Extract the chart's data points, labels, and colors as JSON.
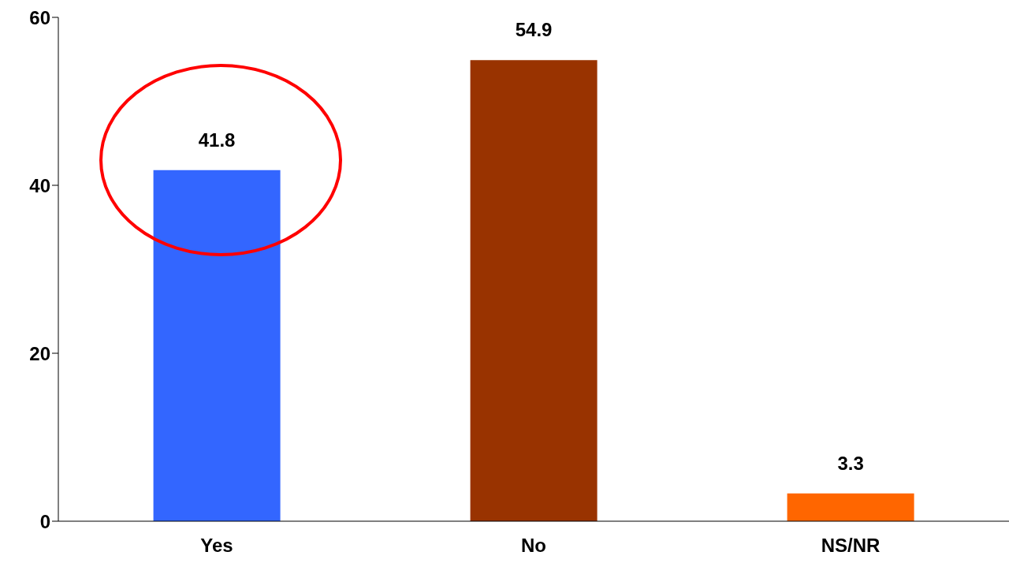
{
  "chart_data": {
    "type": "bar",
    "categories": [
      "Yes",
      "No",
      "NS/NR"
    ],
    "values": [
      41.8,
      54.9,
      3.3
    ],
    "colors": [
      "#3366ff",
      "#993300",
      "#ff6600"
    ],
    "ylim": [
      0,
      60
    ],
    "yticks": [
      0,
      20,
      40,
      60
    ],
    "grid": false,
    "data_labels": true,
    "legend": false
  }
}
